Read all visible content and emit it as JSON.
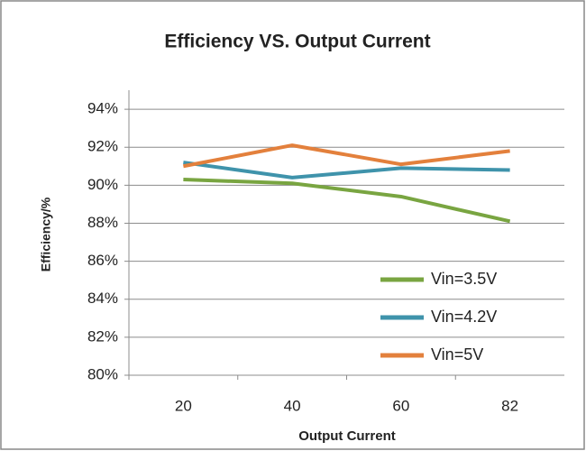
{
  "chart_data": {
    "type": "line",
    "title": "Efficiency VS. Output Current",
    "xlabel": "Output  Current",
    "ylabel": "Efficiency/%",
    "categories": [
      "20",
      "40",
      "60",
      "82"
    ],
    "series": [
      {
        "name": "Vin=3.5V",
        "color": "#79a541",
        "values": [
          90.3,
          90.1,
          89.4,
          88.1
        ]
      },
      {
        "name": "Vin=4.2V",
        "color": "#3f93ab",
        "values": [
          91.2,
          90.4,
          90.9,
          90.8
        ]
      },
      {
        "name": "Vin=5V",
        "color": "#e3803c",
        "values": [
          91.0,
          92.1,
          91.1,
          91.8
        ]
      }
    ],
    "ylim": [
      80,
      95
    ],
    "yticks": [
      {
        "value": 80,
        "label": "80%"
      },
      {
        "value": 82,
        "label": "82%"
      },
      {
        "value": 84,
        "label": "84%"
      },
      {
        "value": 86,
        "label": "86%"
      },
      {
        "value": 88,
        "label": "88%"
      },
      {
        "value": 90,
        "label": "90%"
      },
      {
        "value": 92,
        "label": "92%"
      },
      {
        "value": 94,
        "label": "94%"
      }
    ],
    "grid": true
  }
}
